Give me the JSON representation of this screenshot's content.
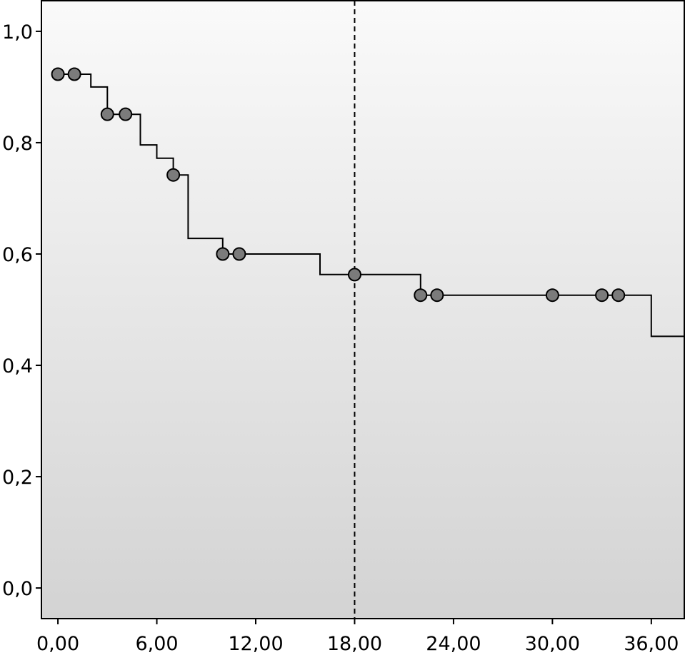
{
  "chart_data": {
    "type": "line",
    "subtype": "kaplan-meier-step",
    "title": "",
    "xlabel": "",
    "ylabel": "",
    "xlim": [
      -1.0,
      38.0
    ],
    "ylim": [
      -0.055,
      1.055
    ],
    "x_ticks": [
      0,
      6,
      12,
      18,
      24,
      30,
      36
    ],
    "x_tick_labels": [
      "0,00",
      "6,00",
      "12,00",
      "18,00",
      "24,00",
      "30,00",
      "36,00"
    ],
    "y_ticks": [
      0.0,
      0.2,
      0.4,
      0.6,
      0.8,
      1.0
    ],
    "y_tick_labels": [
      "0,0",
      "0,2",
      "0,4",
      "0,6",
      "0,8",
      "1,0"
    ],
    "grid": false,
    "legend": "none",
    "reference_line": {
      "x": 18,
      "style": "dashed"
    },
    "series": [
      {
        "step_points": [
          [
            0.0,
            0.923
          ],
          [
            2.0,
            0.923
          ],
          [
            2.0,
            0.9
          ],
          [
            3.0,
            0.9
          ],
          [
            3.0,
            0.851
          ],
          [
            5.0,
            0.851
          ],
          [
            5.0,
            0.796
          ],
          [
            6.0,
            0.796
          ],
          [
            6.0,
            0.772
          ],
          [
            7.0,
            0.772
          ],
          [
            7.0,
            0.742
          ],
          [
            7.9,
            0.742
          ],
          [
            7.9,
            0.628
          ],
          [
            10.0,
            0.628
          ],
          [
            10.0,
            0.6
          ],
          [
            15.9,
            0.6
          ],
          [
            15.9,
            0.563
          ],
          [
            22.0,
            0.563
          ],
          [
            22.0,
            0.526
          ],
          [
            36.0,
            0.526
          ],
          [
            36.0,
            0.452
          ],
          [
            38.0,
            0.452
          ]
        ],
        "censored": [
          [
            0.0,
            0.923
          ],
          [
            1.0,
            0.923
          ],
          [
            3.0,
            0.851
          ],
          [
            4.1,
            0.851
          ],
          [
            7.0,
            0.742
          ],
          [
            10.0,
            0.6
          ],
          [
            11.0,
            0.6
          ],
          [
            18.0,
            0.563
          ],
          [
            22.0,
            0.526
          ],
          [
            23.0,
            0.526
          ],
          [
            30.0,
            0.526
          ],
          [
            33.0,
            0.526
          ],
          [
            34.0,
            0.526
          ]
        ]
      }
    ]
  },
  "colors": {
    "plot_bg_top": "#fafafa",
    "plot_bg_bottom": "#d3d3d3",
    "line": "#000000",
    "marker_fill": "#7b7b7b",
    "marker_stroke": "#000000"
  }
}
